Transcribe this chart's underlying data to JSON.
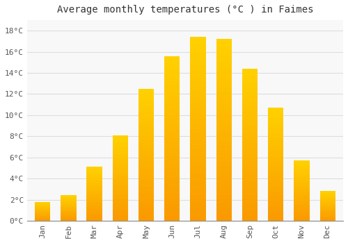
{
  "title": "Average monthly temperatures (°C ) in Faimes",
  "months": [
    "Jan",
    "Feb",
    "Mar",
    "Apr",
    "May",
    "Jun",
    "Jul",
    "Aug",
    "Sep",
    "Oct",
    "Nov",
    "Dec"
  ],
  "values": [
    1.8,
    2.4,
    5.1,
    8.1,
    12.5,
    15.6,
    17.4,
    17.2,
    14.4,
    10.7,
    5.7,
    2.8
  ],
  "bar_color_main": "#FFA500",
  "bar_color_top": "#FFD700",
  "bar_color_bottom": "#FF8C00",
  "background_color": "#FFFFFF",
  "plot_bg_color": "#F8F8F8",
  "grid_color": "#DDDDDD",
  "ylim": [
    0,
    19
  ],
  "yticks": [
    0,
    2,
    4,
    6,
    8,
    10,
    12,
    14,
    16,
    18
  ],
  "title_fontsize": 10,
  "tick_fontsize": 8,
  "bar_width": 0.6,
  "figsize": [
    5.0,
    3.5
  ],
  "dpi": 100
}
